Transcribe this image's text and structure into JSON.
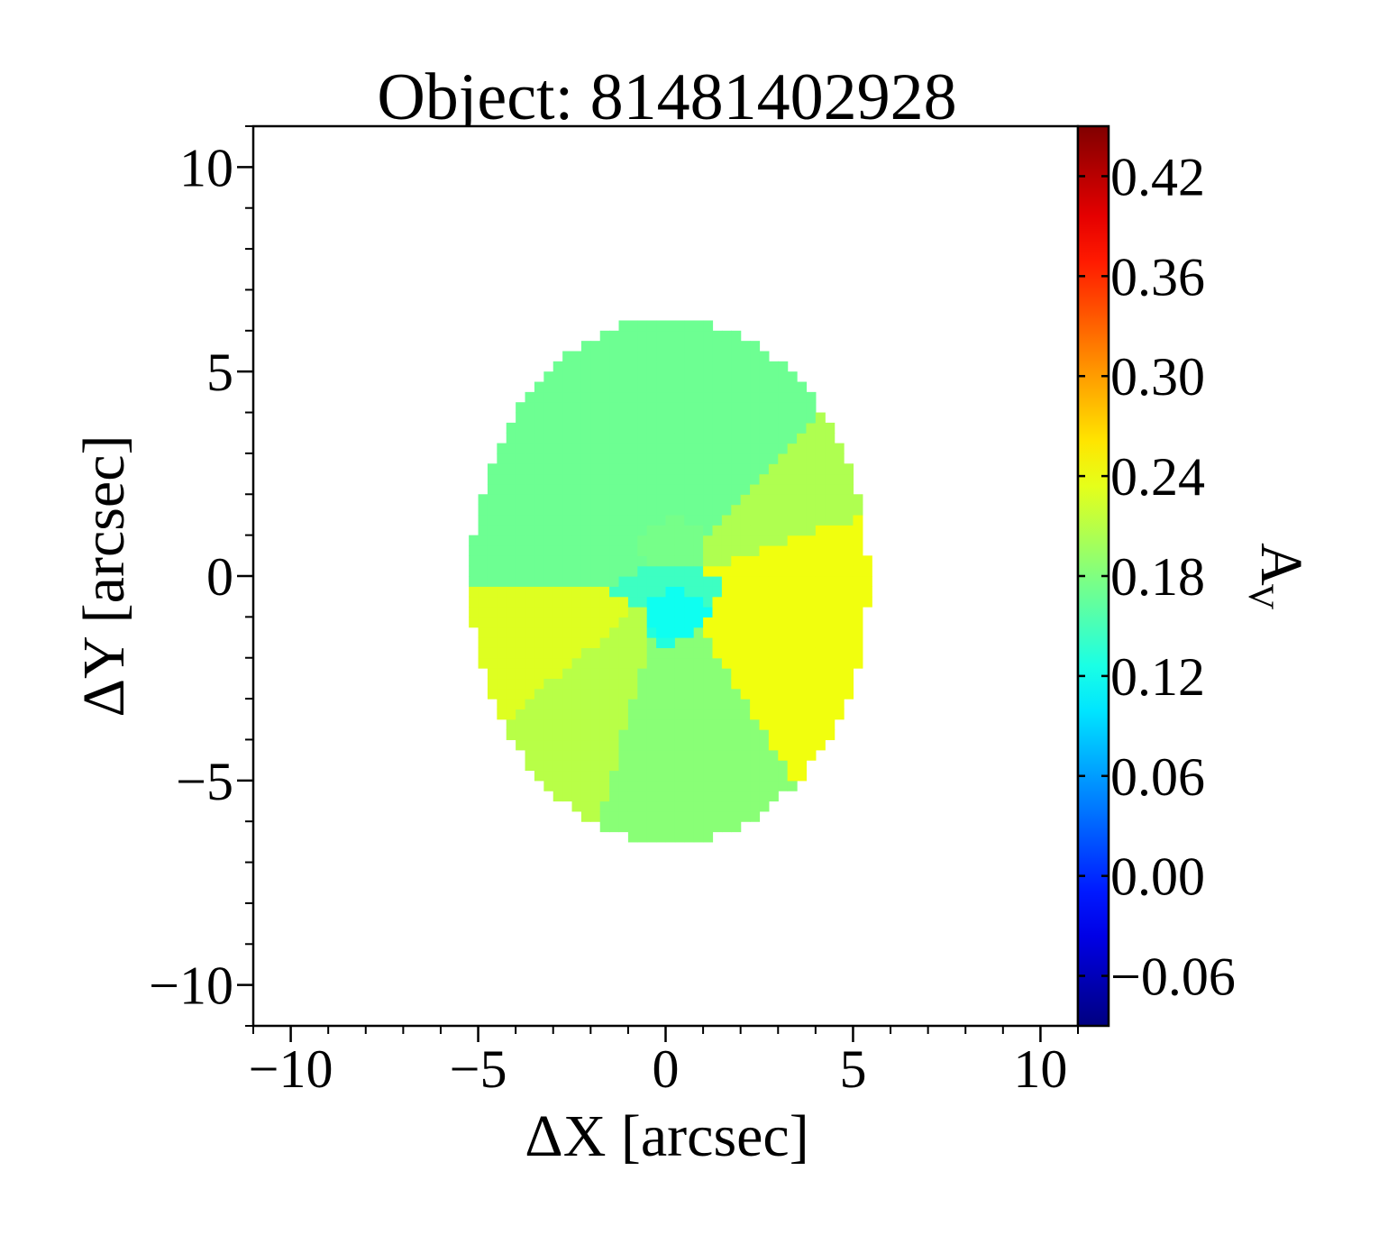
{
  "chart_data": {
    "type": "heatmap",
    "title": "Object: 81481402928",
    "xlabel": "ΔX [arcsec]",
    "ylabel": "ΔY [arcsec]",
    "colorbar_label": "A",
    "colorbar_label_sub": "V",
    "xlim": [
      -11,
      11
    ],
    "ylim": [
      -11,
      11
    ],
    "x_ticks": [
      -10,
      -5,
      0,
      5,
      10
    ],
    "x_tick_labels": [
      "−10",
      "−5",
      "0",
      "5",
      "10"
    ],
    "y_ticks": [
      -10,
      -5,
      0,
      5,
      10
    ],
    "y_tick_labels": [
      "−10",
      "−5",
      "0",
      "5",
      "10"
    ],
    "colorbar": {
      "colormap": "jet",
      "vmin": -0.09,
      "vmax": 0.45,
      "ticks": [
        -0.06,
        0.0,
        0.06,
        0.12,
        0.18,
        0.24,
        0.3,
        0.36,
        0.42
      ],
      "tick_labels": [
        "−0.06",
        "0.00",
        "0.06",
        "0.12",
        "0.18",
        "0.24",
        "0.30",
        "0.36",
        "0.42"
      ]
    },
    "map": {
      "center": [
        0.1,
        -0.1
      ],
      "semi_axis_x": 5.3,
      "semi_axis_y": 6.4,
      "pixel_size": 0.25,
      "sectors": [
        {
          "from_deg": 17,
          "to_deg": 45,
          "value": 0.205
        },
        {
          "from_deg": 45,
          "to_deg": 95,
          "value": 0.17
        },
        {
          "from_deg": 95,
          "to_deg": 147,
          "value": 0.17
        },
        {
          "from_deg": 147,
          "to_deg": 183,
          "value": 0.17
        },
        {
          "from_deg": 183,
          "to_deg": 218,
          "value": 0.23
        },
        {
          "from_deg": 218,
          "to_deg": 252,
          "value": 0.21
        },
        {
          "from_deg": 252,
          "to_deg": 304,
          "value": 0.185
        },
        {
          "from_deg": 304,
          "to_deg": 377,
          "value": 0.24
        }
      ],
      "core": [
        {
          "x": 0.3,
          "y": -0.9,
          "rx": 0.9,
          "ry": 0.55,
          "value": 0.12
        },
        {
          "x": 0.0,
          "y": -1.2,
          "rx": 0.6,
          "ry": 0.5,
          "value": 0.13
        },
        {
          "x": 0.1,
          "y": -0.3,
          "rx": 1.5,
          "ry": 0.5,
          "value": 0.145
        },
        {
          "x": 0.2,
          "y": 0.7,
          "rx": 0.9,
          "ry": 0.7,
          "value": 0.175
        }
      ]
    }
  }
}
